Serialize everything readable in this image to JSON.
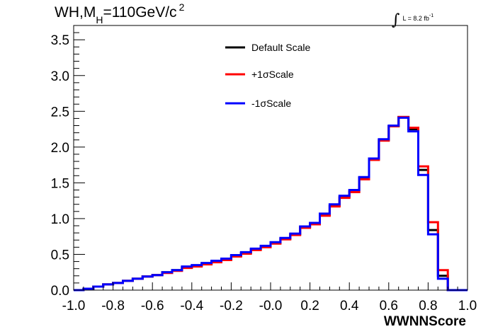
{
  "title": {
    "main": "WH,M",
    "subscript": "H",
    "rest": "=110GeV/c",
    "superscript": "2"
  },
  "luminosity": {
    "symbol": "∫",
    "text": "L = 8.2 fb",
    "superscript": "-1"
  },
  "legend": [
    {
      "label": "Default Scale",
      "color": "#000000"
    },
    {
      "label": "+1σScale",
      "color": "#ff0000"
    },
    {
      "label": "-1σScale",
      "color": "#0000ff"
    }
  ],
  "chart_data": {
    "type": "line",
    "step": true,
    "xlabel": "WWNNScore",
    "ylabel": "",
    "xlim": [
      -1.0,
      1.0
    ],
    "ylim": [
      0.0,
      3.7
    ],
    "x_ticks": [
      -1.0,
      -0.8,
      -0.6,
      -0.4,
      -0.2,
      0.0,
      0.2,
      0.4,
      0.6,
      0.8,
      1.0
    ],
    "x_tick_labels": [
      "-1.0",
      "-0.8",
      "-0.6",
      "-0.4",
      "-0.2",
      "-0.0",
      "0.2",
      "0.4",
      "0.6",
      "0.8",
      "1.0"
    ],
    "y_ticks": [
      0.0,
      0.5,
      1.0,
      1.5,
      2.0,
      2.5,
      3.0,
      3.5
    ],
    "y_tick_labels": [
      "0.0",
      "0.5",
      "1.0",
      "1.5",
      "2.0",
      "2.5",
      "3.0",
      "3.5"
    ],
    "bin_edges": [
      -1.0,
      -0.95,
      -0.9,
      -0.85,
      -0.8,
      -0.75,
      -0.7,
      -0.65,
      -0.6,
      -0.55,
      -0.5,
      -0.45,
      -0.4,
      -0.35,
      -0.3,
      -0.25,
      -0.2,
      -0.15,
      -0.1,
      -0.05,
      0.0,
      0.05,
      0.1,
      0.15,
      0.2,
      0.25,
      0.3,
      0.35,
      0.4,
      0.45,
      0.5,
      0.55,
      0.6,
      0.65,
      0.7,
      0.75,
      0.8,
      0.85,
      0.9,
      0.95,
      1.0
    ],
    "series": [
      {
        "name": "Default Scale",
        "color": "#000000",
        "values": [
          0.0,
          0.02,
          0.05,
          0.08,
          0.1,
          0.13,
          0.16,
          0.19,
          0.21,
          0.25,
          0.28,
          0.32,
          0.34,
          0.37,
          0.4,
          0.43,
          0.48,
          0.52,
          0.57,
          0.61,
          0.66,
          0.72,
          0.78,
          0.88,
          0.93,
          1.05,
          1.18,
          1.3,
          1.38,
          1.57,
          1.83,
          2.1,
          2.29,
          2.42,
          2.25,
          1.68,
          0.84,
          0.2,
          0.0,
          0.0
        ]
      },
      {
        "name": "+1σScale",
        "color": "#ff0000",
        "values": [
          0.0,
          0.02,
          0.05,
          0.08,
          0.1,
          0.13,
          0.16,
          0.19,
          0.21,
          0.24,
          0.27,
          0.31,
          0.33,
          0.36,
          0.39,
          0.42,
          0.47,
          0.51,
          0.56,
          0.6,
          0.65,
          0.71,
          0.77,
          0.87,
          0.92,
          1.04,
          1.17,
          1.29,
          1.37,
          1.55,
          1.82,
          2.09,
          2.29,
          2.42,
          2.27,
          1.73,
          0.95,
          0.28,
          0.0,
          0.0
        ]
      },
      {
        "name": "-1σScale",
        "color": "#0000ff",
        "values": [
          0.0,
          0.02,
          0.05,
          0.08,
          0.1,
          0.13,
          0.16,
          0.19,
          0.21,
          0.25,
          0.28,
          0.33,
          0.35,
          0.38,
          0.41,
          0.44,
          0.49,
          0.53,
          0.58,
          0.62,
          0.67,
          0.73,
          0.79,
          0.89,
          0.94,
          1.07,
          1.2,
          1.32,
          1.4,
          1.58,
          1.84,
          2.11,
          2.3,
          2.41,
          2.22,
          1.61,
          0.78,
          0.16,
          0.0,
          0.0
        ]
      }
    ]
  }
}
